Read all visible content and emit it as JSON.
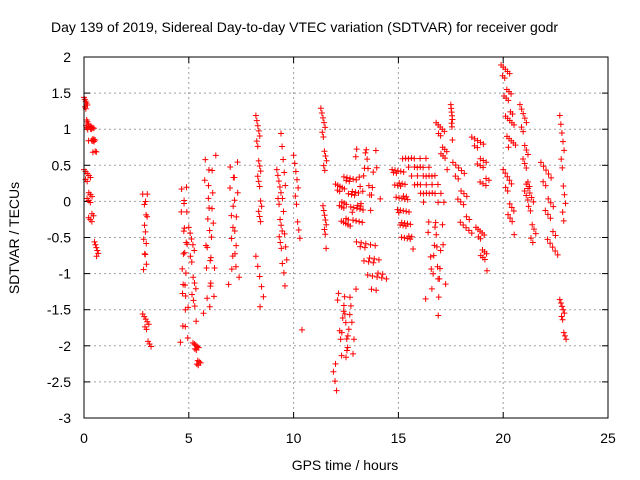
{
  "chart_data": {
    "type": "scatter",
    "title": "Day 139 of 2019, Sidereal Day-to-day VTEC variation (SDTVAR) for receiver godr",
    "xlabel": "GPS time / hours",
    "ylabel": "SDTVAR / TECUs",
    "xlim": [
      0,
      25
    ],
    "ylim": [
      -3,
      2
    ],
    "xticks": [
      0,
      5,
      10,
      15,
      20,
      25
    ],
    "xtick_labels": [
      "0",
      "5",
      "10",
      "15",
      "20",
      "25"
    ],
    "yticks": [
      -3,
      -2.5,
      -2,
      -1.5,
      -1,
      -0.5,
      0,
      0.5,
      1,
      1.5,
      2
    ],
    "ytick_labels": [
      "-3",
      "-2.5",
      "-2",
      "-1.5",
      "-1",
      "-0.5",
      "0",
      "0.5",
      "1",
      "1.5",
      "2"
    ],
    "grid": true,
    "marker": "+",
    "series": [
      {
        "name": "SDTVAR",
        "color": "#ff0000",
        "clusters": [
          [
            0.0,
            0.25,
            1.5,
            0.9,
            14,
            0
          ],
          [
            0.25,
            0.6,
            1.1,
            0.7,
            16,
            0
          ],
          [
            0.0,
            0.5,
            0.5,
            -0.3,
            18,
            0
          ],
          [
            0.5,
            0.7,
            -0.5,
            -0.8,
            6,
            0
          ],
          [
            2.8,
            3.05,
            -1.0,
            0.15,
            14,
            1
          ],
          [
            2.8,
            3.2,
            -1.5,
            -2.0,
            10,
            0
          ],
          [
            4.6,
            5.0,
            0.3,
            -1.9,
            24,
            1
          ],
          [
            5.0,
            5.4,
            -0.3,
            -1.6,
            14,
            0
          ],
          [
            5.2,
            5.6,
            -1.9,
            -2.3,
            12,
            0
          ],
          [
            5.7,
            6.3,
            0.7,
            -1.5,
            26,
            1
          ],
          [
            6.9,
            7.4,
            0.6,
            -1.1,
            20,
            1
          ],
          [
            8.2,
            8.5,
            1.25,
            -0.3,
            18,
            0
          ],
          [
            8.2,
            8.6,
            -0.7,
            -1.5,
            6,
            0
          ],
          [
            9.2,
            9.5,
            0.5,
            -0.8,
            14,
            0
          ],
          [
            9.4,
            9.7,
            1.0,
            -1.2,
            12,
            0
          ],
          [
            10.0,
            10.3,
            0.7,
            -0.5,
            10,
            0
          ],
          [
            10.4,
            10.4,
            -1.72,
            -1.72,
            1,
            0
          ],
          [
            11.3,
            11.6,
            1.35,
            0.4,
            12,
            0
          ],
          [
            11.4,
            11.6,
            0.0,
            -0.6,
            8,
            0
          ],
          [
            12.0,
            12.7,
            0.3,
            -0.4,
            20,
            0
          ],
          [
            12.0,
            13.0,
            -1.2,
            -2.2,
            26,
            1
          ],
          [
            11.9,
            12.1,
            -2.3,
            -2.6,
            3,
            0
          ],
          [
            12.4,
            13.4,
            0.4,
            -0.3,
            24,
            0
          ],
          [
            12.8,
            14.2,
            0.8,
            -0.1,
            22,
            1
          ],
          [
            13.0,
            14.5,
            -0.5,
            -1.2,
            22,
            0
          ],
          [
            14.7,
            15.7,
            0.5,
            -0.6,
            40,
            0
          ],
          [
            15.2,
            17.2,
            0.65,
            0.0,
            36,
            0
          ],
          [
            16.3,
            17.3,
            -0.2,
            -1.3,
            22,
            1
          ],
          [
            16.8,
            17.4,
            1.15,
            0.5,
            14,
            0
          ],
          [
            17.5,
            17.6,
            1.4,
            0.9,
            8,
            0
          ],
          [
            16.9,
            16.9,
            -1.52,
            -1.52,
            1,
            0
          ],
          [
            17.6,
            18.5,
            0.6,
            -0.5,
            20,
            0
          ],
          [
            18.5,
            19.4,
            0.95,
            0.2,
            18,
            0
          ],
          [
            18.7,
            19.3,
            -0.3,
            -0.9,
            14,
            0
          ],
          [
            19.9,
            20.6,
            1.95,
            0.7,
            26,
            0
          ],
          [
            20.0,
            20.6,
            0.5,
            -0.4,
            14,
            0
          ],
          [
            20.8,
            21.3,
            1.4,
            0.0,
            18,
            0
          ],
          [
            21.1,
            21.6,
            0.3,
            -0.6,
            12,
            0
          ],
          [
            21.8,
            22.6,
            0.6,
            -0.8,
            20,
            0
          ],
          [
            22.7,
            23.0,
            1.25,
            -0.3,
            12,
            0
          ],
          [
            22.7,
            23.0,
            -1.3,
            -1.9,
            10,
            0
          ]
        ]
      }
    ]
  }
}
